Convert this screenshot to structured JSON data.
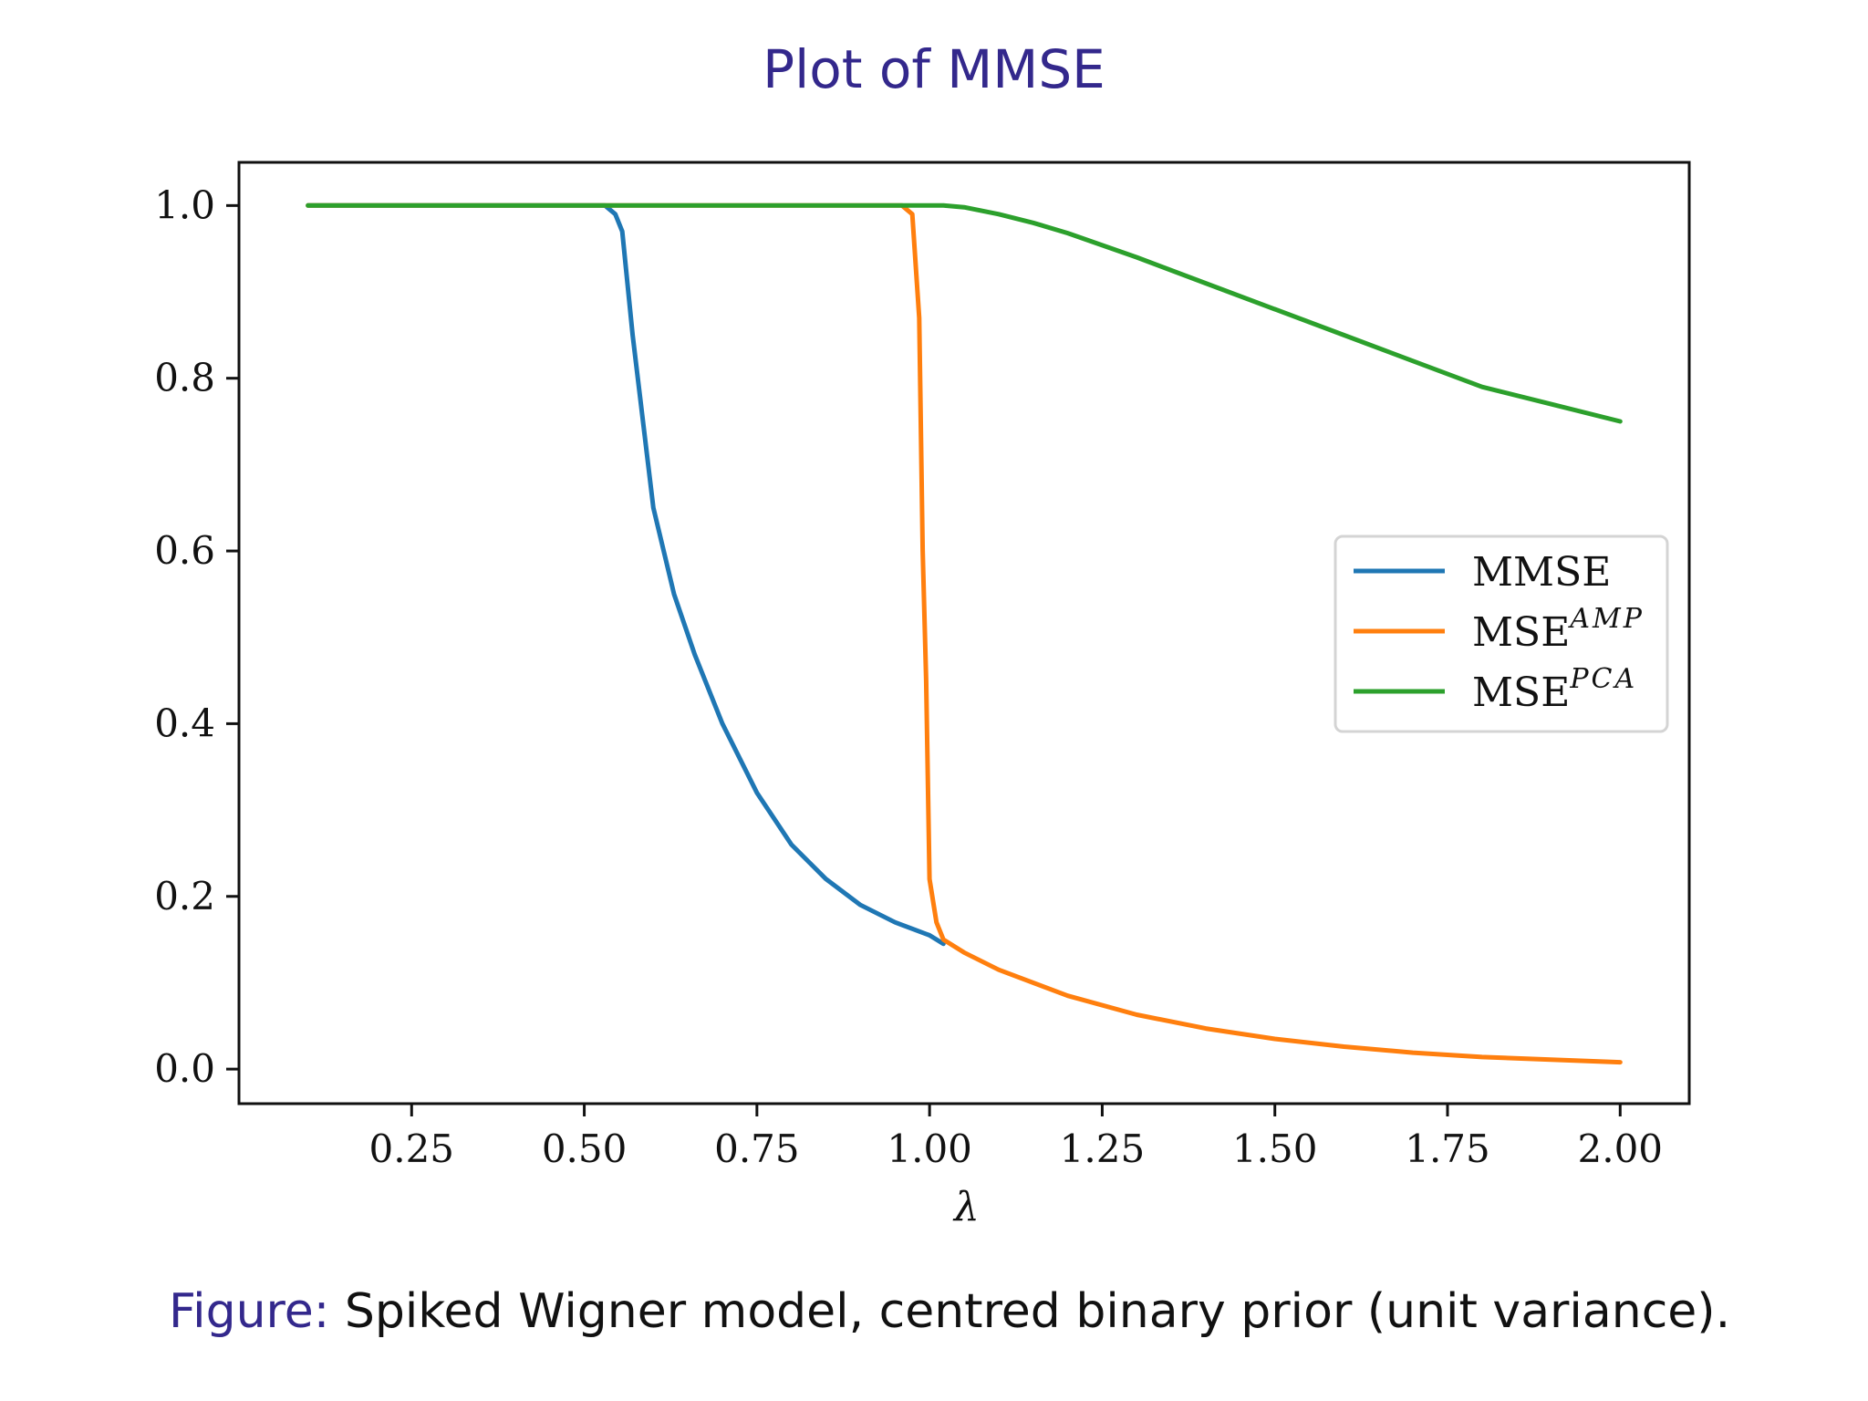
{
  "slide": {
    "title": "Plot of MMSE"
  },
  "caption": {
    "prefix": "Figure:",
    "text": "Spiked Wigner model, centred binary prior (unit variance)."
  },
  "chart_data": {
    "type": "line",
    "title": "",
    "xlabel": "λ",
    "ylabel": "",
    "xlim": [
      0.0,
      2.1
    ],
    "ylim": [
      -0.04,
      1.05
    ],
    "xticks": [
      0.25,
      0.5,
      0.75,
      1.0,
      1.25,
      1.5,
      1.75,
      2.0
    ],
    "xtick_labels": [
      "0.25",
      "0.50",
      "0.75",
      "1.00",
      "1.25",
      "1.50",
      "1.75",
      "2.00"
    ],
    "yticks": [
      0.0,
      0.2,
      0.4,
      0.6,
      0.8,
      1.0
    ],
    "ytick_labels": [
      "0.0",
      "0.2",
      "0.4",
      "0.6",
      "0.8",
      "1.0"
    ],
    "grid": false,
    "legend_position": "center-right",
    "series": [
      {
        "name": "MMSE",
        "legend_base": "MMSE",
        "legend_sup": "",
        "color": "#1f77b4",
        "x": [
          0.1,
          0.2,
          0.3,
          0.4,
          0.5,
          0.53,
          0.545,
          0.555,
          0.57,
          0.6,
          0.63,
          0.66,
          0.7,
          0.75,
          0.8,
          0.85,
          0.9,
          0.95,
          1.0,
          1.02
        ],
        "y": [
          1.0,
          1.0,
          1.0,
          1.0,
          1.0,
          1.0,
          0.99,
          0.97,
          0.85,
          0.65,
          0.55,
          0.48,
          0.4,
          0.32,
          0.26,
          0.22,
          0.19,
          0.17,
          0.155,
          0.145
        ]
      },
      {
        "name": "MSE^AMP",
        "legend_base": "MSE",
        "legend_sup": "AMP",
        "color": "#ff7f0e",
        "x": [
          0.1,
          0.3,
          0.5,
          0.7,
          0.9,
          0.96,
          0.975,
          0.985,
          0.99,
          0.995,
          1.0,
          1.01,
          1.02,
          1.05,
          1.1,
          1.2,
          1.3,
          1.4,
          1.5,
          1.6,
          1.7,
          1.8,
          1.9,
          2.0
        ],
        "y": [
          1.0,
          1.0,
          1.0,
          1.0,
          1.0,
          1.0,
          0.99,
          0.87,
          0.6,
          0.45,
          0.22,
          0.17,
          0.15,
          0.135,
          0.115,
          0.085,
          0.063,
          0.047,
          0.035,
          0.026,
          0.019,
          0.014,
          0.011,
          0.008
        ]
      },
      {
        "name": "MSE^PCA",
        "legend_base": "MSE",
        "legend_sup": "PCA",
        "color": "#2ca02c",
        "x": [
          0.1,
          0.3,
          0.5,
          0.7,
          0.9,
          1.0,
          1.02,
          1.05,
          1.1,
          1.15,
          1.2,
          1.3,
          1.4,
          1.5,
          1.6,
          1.7,
          1.8,
          1.9,
          2.0
        ],
        "y": [
          1.0,
          1.0,
          1.0,
          1.0,
          1.0,
          1.0,
          1.0,
          0.998,
          0.99,
          0.98,
          0.968,
          0.94,
          0.91,
          0.88,
          0.85,
          0.82,
          0.79,
          0.77,
          0.75
        ]
      }
    ]
  }
}
